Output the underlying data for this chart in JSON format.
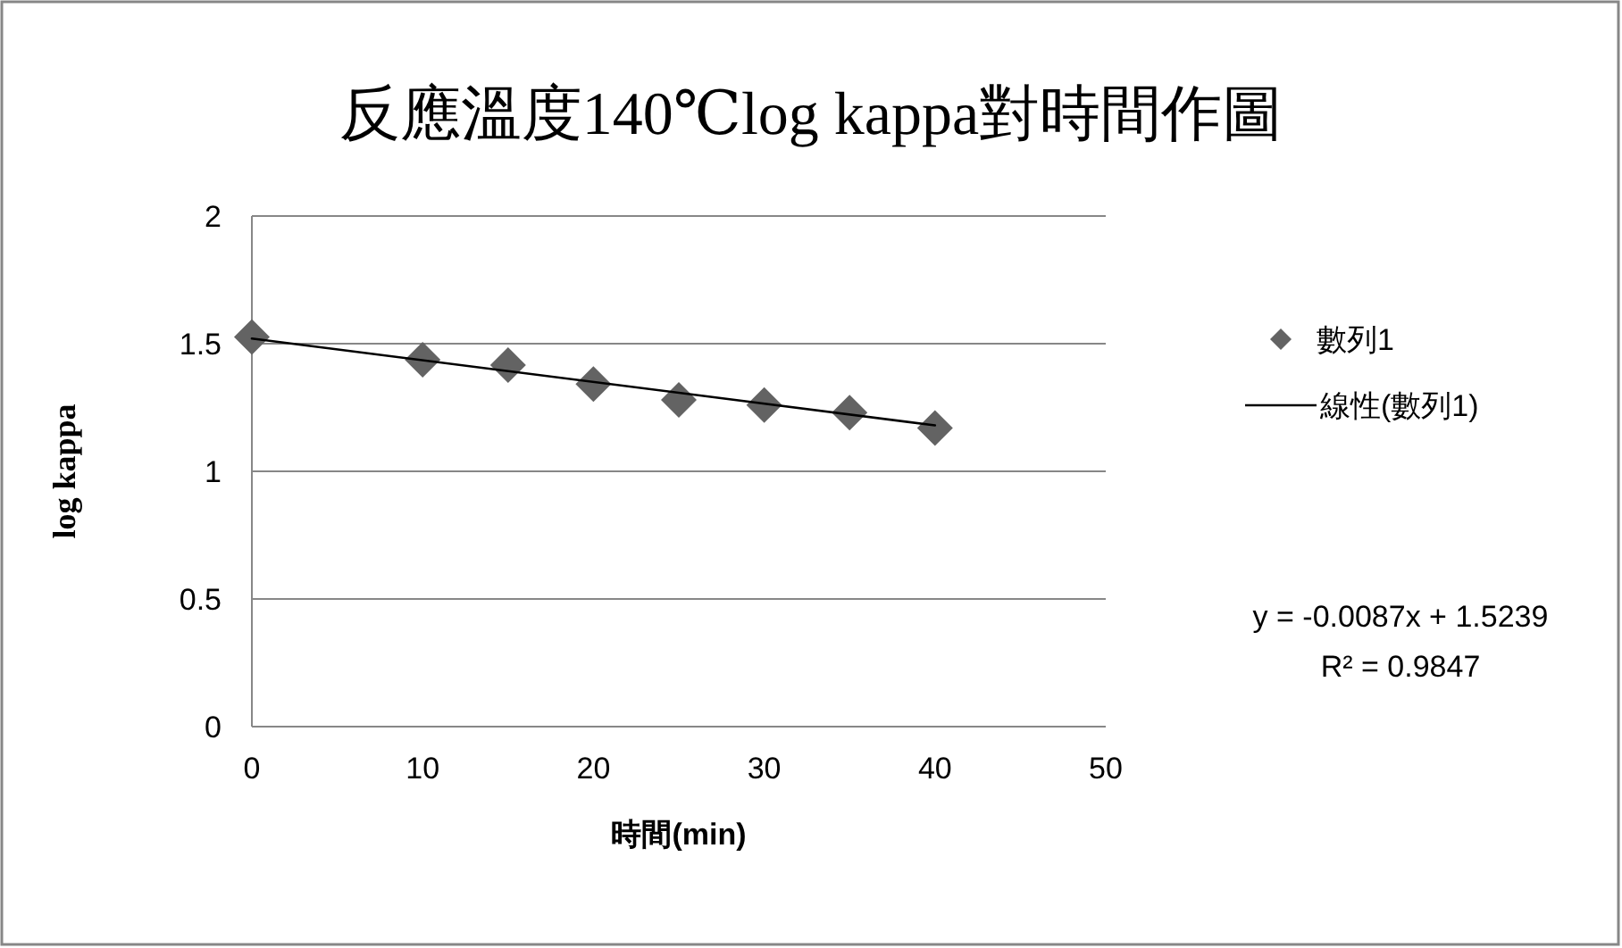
{
  "chart_data": {
    "type": "scatter",
    "title": "反應溫度140℃log kappa對時間作圖",
    "xlabel": "時間(min)",
    "ylabel": "log kappa",
    "x": [
      0,
      10,
      15,
      20,
      25,
      30,
      35,
      40
    ],
    "series": [
      {
        "name": "數列1",
        "color": "#636363",
        "marker": "diamond",
        "values": [
          1.526,
          1.437,
          1.416,
          1.342,
          1.28,
          1.26,
          1.23,
          1.17
        ]
      },
      {
        "name": "線性(數列1)",
        "type": "line",
        "color": "#000000",
        "marker": "none",
        "x": [
          0,
          40
        ],
        "values": [
          1.52,
          1.18
        ]
      }
    ],
    "xlim": [
      0,
      50
    ],
    "xticks": [
      0,
      10,
      20,
      30,
      40,
      50
    ],
    "ylim": [
      0,
      2
    ],
    "yticks": [
      0,
      0.5,
      1,
      1.5,
      2
    ],
    "grid": "y",
    "legend": "right",
    "annotations": [
      "y = -0.0087x + 1.5239",
      "R² = 0.9847"
    ]
  }
}
